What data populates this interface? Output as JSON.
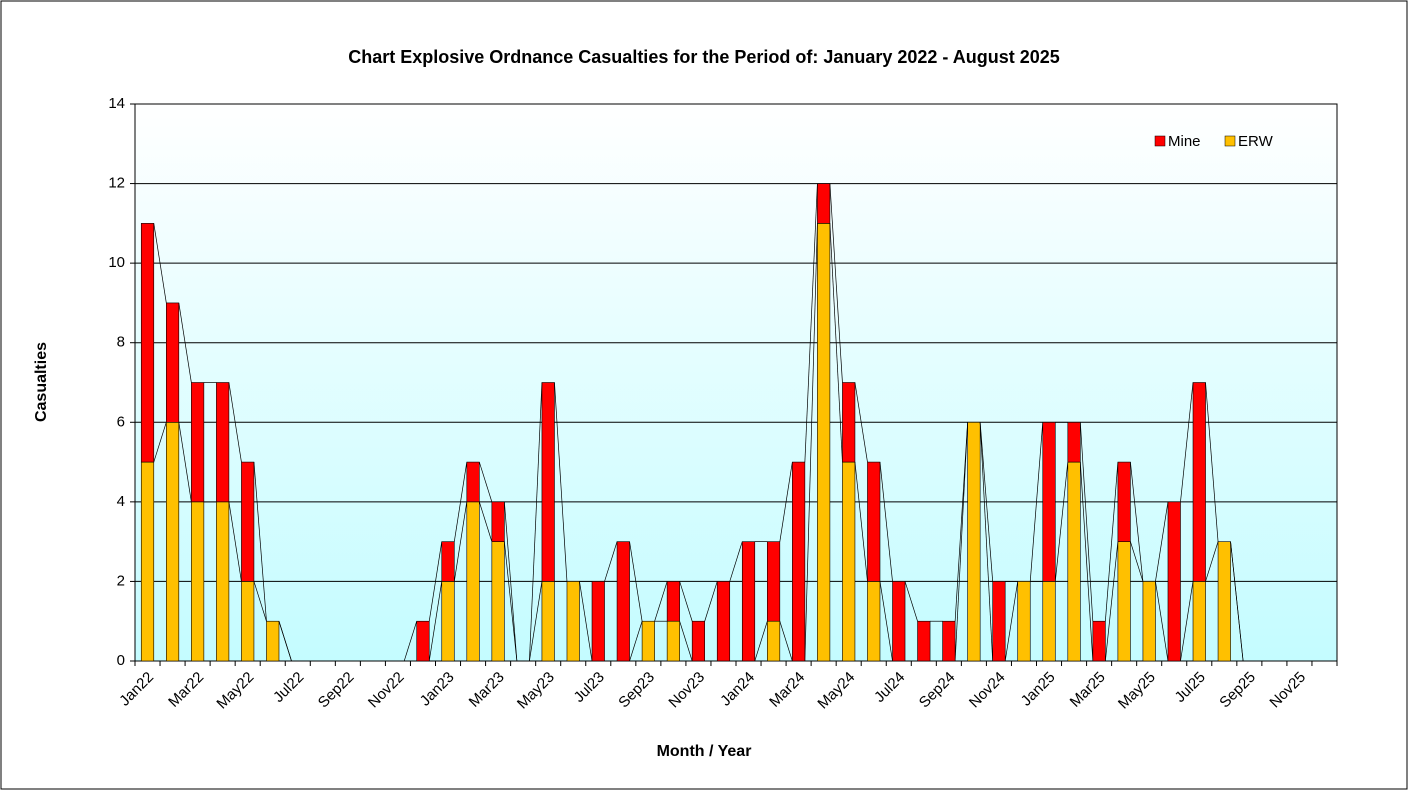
{
  "chart_data": {
    "type": "stacked_bar",
    "title": "Chart Explosive Ordnance Casualties for the Period of: January 2022 - August 2025",
    "x_label": "Month / Year",
    "y_label": "Casualties",
    "categories": [
      "Jan22",
      null,
      "Mar22",
      null,
      "May22",
      null,
      "Jul22",
      null,
      "Sep22",
      null,
      "Nov22",
      null,
      "Jan23",
      null,
      "Mar23",
      null,
      "May23",
      null,
      "Jul23",
      null,
      "Sep23",
      null,
      "Nov23",
      null,
      "Jan24",
      null,
      "Mar24",
      null,
      "May24",
      null,
      "Jul24",
      null,
      "Sep24",
      null,
      "Nov24",
      null,
      "Jan25",
      null,
      "Mar25",
      null,
      "May25",
      null,
      "Jul25",
      null,
      "Sep25",
      null,
      "Nov25",
      null
    ],
    "series": [
      {
        "name": "ERW",
        "color": "#ffc000",
        "values": [
          5,
          6,
          4,
          4,
          2,
          1,
          0,
          0,
          0,
          0,
          0,
          0,
          2,
          4,
          3,
          0,
          2,
          2,
          0,
          0,
          1,
          1,
          0,
          0,
          0,
          1,
          0,
          11,
          5,
          2,
          0,
          0,
          0,
          6,
          0,
          2,
          2,
          5,
          0,
          3,
          2,
          0,
          2,
          3,
          0,
          null,
          null,
          null
        ]
      },
      {
        "name": "Mine",
        "color": "#ff0000",
        "values": [
          6,
          3,
          3,
          3,
          3,
          0,
          0,
          0,
          0,
          0,
          0,
          1,
          1,
          1,
          1,
          0,
          5,
          0,
          2,
          3,
          0,
          1,
          1,
          2,
          3,
          2,
          5,
          1,
          2,
          3,
          2,
          1,
          1,
          0,
          2,
          0,
          4,
          1,
          1,
          2,
          0,
          4,
          5,
          0,
          0,
          null,
          null,
          null
        ]
      }
    ],
    "ylim": [
      0,
      14
    ],
    "yticks": [
      0,
      2,
      4,
      6,
      8,
      10,
      12,
      14
    ],
    "grid": true,
    "legend": "top-right"
  }
}
